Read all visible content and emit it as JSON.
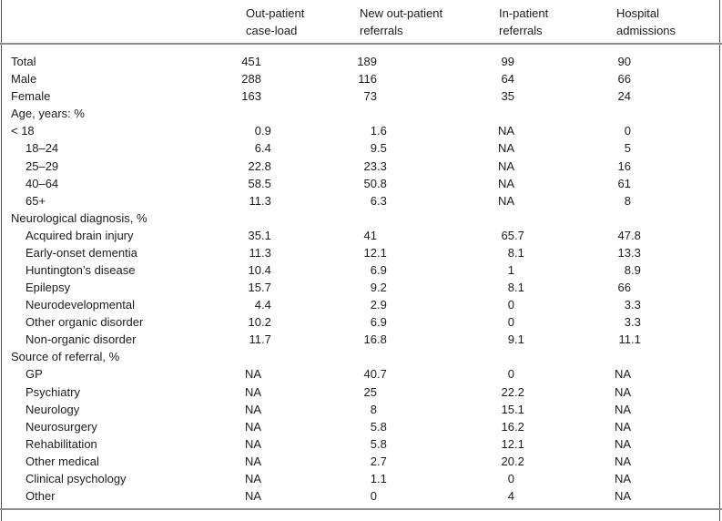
{
  "table": {
    "columns": [
      "Out-patient case-load",
      "New out-patient referrals",
      "In-patient referrals",
      "Hospital admissions"
    ],
    "rows": [
      {
        "label": "Total",
        "indent": 0,
        "section": false,
        "values": [
          "451",
          "189",
          "99",
          "90"
        ]
      },
      {
        "label": "Male",
        "indent": 0,
        "section": false,
        "values": [
          "288",
          "116",
          "64",
          "66"
        ]
      },
      {
        "label": "Female",
        "indent": 0,
        "section": false,
        "values": [
          "163",
          "73",
          "35",
          "24"
        ]
      },
      {
        "label": "Age, years: %",
        "indent": 0,
        "section": true,
        "values": [
          "",
          "",
          "",
          ""
        ]
      },
      {
        "label": "< 18",
        "indent": 0,
        "section": false,
        "values": [
          "0.9",
          "1.6",
          "NA",
          "0"
        ]
      },
      {
        "label": "18–24",
        "indent": 1,
        "section": false,
        "values": [
          "6.4",
          "9.5",
          "NA",
          "5"
        ]
      },
      {
        "label": "25–29",
        "indent": 1,
        "section": false,
        "values": [
          "22.8",
          "23.3",
          "NA",
          "16"
        ]
      },
      {
        "label": "40–64",
        "indent": 1,
        "section": false,
        "values": [
          "58.5",
          "50.8",
          "NA",
          "61"
        ]
      },
      {
        "label": "65+",
        "indent": 1,
        "section": false,
        "values": [
          "11.3",
          "6.3",
          "NA",
          "8"
        ]
      },
      {
        "label": "Neurological diagnosis, %",
        "indent": 0,
        "section": true,
        "values": [
          "",
          "",
          "",
          ""
        ]
      },
      {
        "label": "Acquired brain injury",
        "indent": 1,
        "section": false,
        "values": [
          "35.1",
          "41",
          "65.7",
          "47.8"
        ]
      },
      {
        "label": "Early-onset dementia",
        "indent": 1,
        "section": false,
        "values": [
          "11.3",
          "12.1",
          "8.1",
          "13.3"
        ]
      },
      {
        "label": "Huntington’s disease",
        "indent": 1,
        "section": false,
        "values": [
          "10.4",
          "6.9",
          "1",
          "8.9"
        ]
      },
      {
        "label": "Epilepsy",
        "indent": 1,
        "section": false,
        "values": [
          "15.7",
          "9.2",
          "8.1",
          "66"
        ]
      },
      {
        "label": "Neurodevelopmental",
        "indent": 1,
        "section": false,
        "values": [
          "4.4",
          "2.9",
          "0",
          "3.3"
        ]
      },
      {
        "label": "Other organic disorder",
        "indent": 1,
        "section": false,
        "values": [
          "10.2",
          "6.9",
          "0",
          "3.3"
        ]
      },
      {
        "label": "Non-organic disorder",
        "indent": 1,
        "section": false,
        "values": [
          "11.7",
          "16.8",
          "9.1",
          "11.1"
        ]
      },
      {
        "label": "Source of referral, %",
        "indent": 0,
        "section": true,
        "values": [
          "",
          "",
          "",
          ""
        ]
      },
      {
        "label": "GP",
        "indent": 1,
        "section": false,
        "values": [
          "NA",
          "40.7",
          "0",
          "NA"
        ]
      },
      {
        "label": "Psychiatry",
        "indent": 1,
        "section": false,
        "values": [
          "NA",
          "25",
          "22.2",
          "NA"
        ]
      },
      {
        "label": "Neurology",
        "indent": 1,
        "section": false,
        "values": [
          "NA",
          "8",
          "15.1",
          "NA"
        ]
      },
      {
        "label": "Neurosurgery",
        "indent": 1,
        "section": false,
        "values": [
          "NA",
          "5.8",
          "16.2",
          "NA"
        ]
      },
      {
        "label": "Rehabilitation",
        "indent": 1,
        "section": false,
        "values": [
          "NA",
          "5.8",
          "12.1",
          "NA"
        ]
      },
      {
        "label": "Other medical",
        "indent": 1,
        "section": false,
        "values": [
          "NA",
          "2.7",
          "20.2",
          "NA"
        ]
      },
      {
        "label": "Clinical psychology",
        "indent": 1,
        "section": false,
        "values": [
          "NA",
          "1.1",
          "0",
          "NA"
        ]
      },
      {
        "label": "Other",
        "indent": 1,
        "section": false,
        "values": [
          "NA",
          "0",
          "4",
          "NA"
        ]
      }
    ]
  },
  "colors": {
    "background": "#ffffff",
    "text": "#1b1b1b",
    "rule": "#8d8d8d",
    "frame_line": "#4f4f4f"
  }
}
